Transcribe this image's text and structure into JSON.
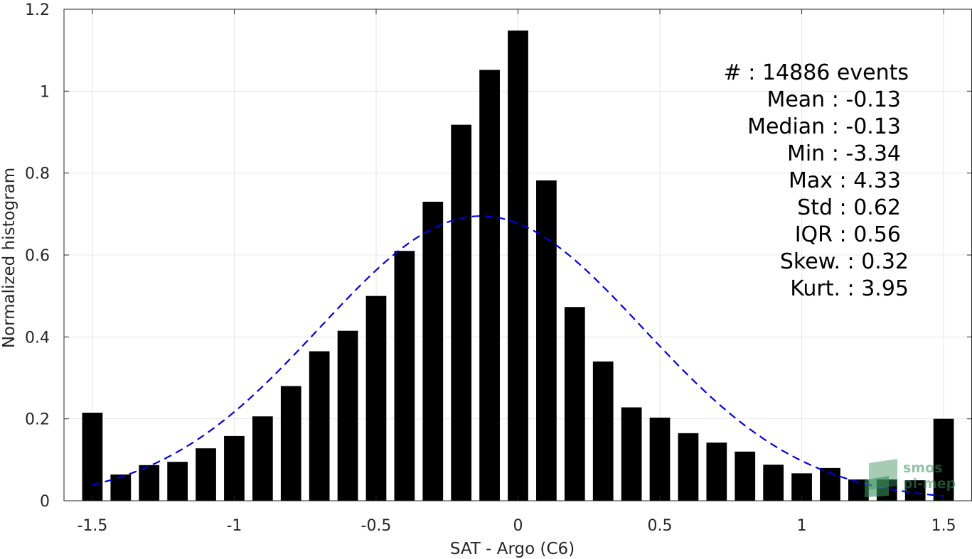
{
  "chart_data": {
    "type": "bar",
    "xlabel": "SAT - Argo (C6)",
    "ylabel": "Normalized histogram",
    "xlim": [
      -1.6,
      1.6
    ],
    "ylim": [
      0,
      1.2
    ],
    "x_ticks": [
      -1.5,
      -1,
      -0.5,
      0,
      0.5,
      1,
      1.5
    ],
    "x_tick_labels": [
      "-1.5",
      "-1",
      "-0.5",
      "0",
      "0.5",
      "1",
      "1.5"
    ],
    "y_ticks": [
      0,
      0.2,
      0.4,
      0.6,
      0.8,
      1,
      1.2
    ],
    "y_tick_labels": [
      "0",
      "0.2",
      "0.4",
      "0.6",
      "0.8",
      "1",
      "1.2"
    ],
    "grid": true,
    "bar_color": "#000000",
    "bin_width": 0.1,
    "x": [
      -1.5,
      -1.4,
      -1.3,
      -1.2,
      -1.1,
      -1.0,
      -0.9,
      -0.8,
      -0.7,
      -0.6,
      -0.5,
      -0.4,
      -0.3,
      -0.2,
      -0.1,
      0.0,
      0.1,
      0.2,
      0.3,
      0.4,
      0.5,
      0.6,
      0.7,
      0.8,
      0.9,
      1.0,
      1.1,
      1.2,
      1.3,
      1.4,
      1.5
    ],
    "values": [
      0.215,
      0.064,
      0.087,
      0.095,
      0.128,
      0.158,
      0.206,
      0.28,
      0.365,
      0.415,
      0.5,
      0.61,
      0.73,
      0.918,
      1.052,
      1.148,
      0.782,
      0.473,
      0.34,
      0.228,
      0.203,
      0.165,
      0.142,
      0.12,
      0.088,
      0.067,
      0.08,
      0.052,
      0.052,
      0.05,
      0.2
    ],
    "fit_curve": {
      "type": "gaussian",
      "mean": -0.13,
      "std": 0.57,
      "peak": 0.695,
      "x_range": [
        -1.5,
        1.5
      ],
      "color": "#0000e0",
      "style": "dashed"
    },
    "annotations": [
      "#  : 14886 events",
      "Mean : -0.13",
      "Median : -0.13",
      "Min : -3.34",
      "Max : 4.33",
      "Std : 0.62",
      "IQR : 0.56",
      "Skew. : 0.32",
      "Kurt. : 3.95"
    ]
  },
  "logo": {
    "lines": [
      "smos",
      "pi-mep"
    ],
    "color": "#3a8f5c"
  }
}
